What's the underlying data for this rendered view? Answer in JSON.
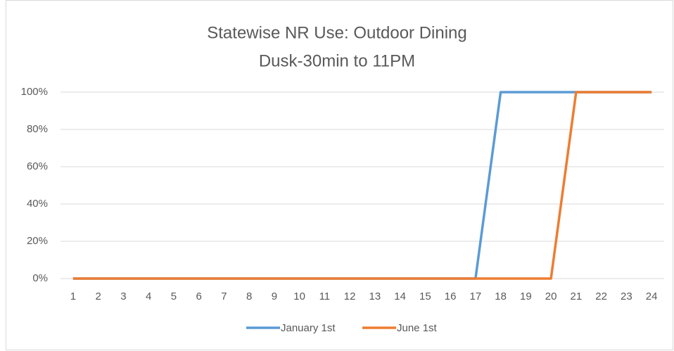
{
  "chart_data": {
    "type": "line",
    "title": "Statewise NR Use: Outdoor Dining",
    "subtitle": "Dusk-30min to 11PM",
    "categories": [
      "1",
      "2",
      "3",
      "4",
      "5",
      "6",
      "7",
      "8",
      "9",
      "10",
      "11",
      "12",
      "13",
      "14",
      "15",
      "16",
      "17",
      "18",
      "19",
      "20",
      "21",
      "22",
      "23",
      "24"
    ],
    "series": [
      {
        "name": "January 1st",
        "color": "#5b9bd5",
        "values": [
          0,
          0,
          0,
          0,
          0,
          0,
          0,
          0,
          0,
          0,
          0,
          0,
          0,
          0,
          0,
          0,
          0,
          100,
          100,
          100,
          100,
          100,
          100,
          100
        ]
      },
      {
        "name": "June 1st",
        "color": "#ed7d31",
        "values": [
          0,
          0,
          0,
          0,
          0,
          0,
          0,
          0,
          0,
          0,
          0,
          0,
          0,
          0,
          0,
          0,
          0,
          0,
          0,
          0,
          100,
          100,
          100,
          100
        ]
      }
    ],
    "ylim": [
      0,
      100
    ],
    "yticks": [
      {
        "value": 0,
        "label": "0%"
      },
      {
        "value": 20,
        "label": "20%"
      },
      {
        "value": 40,
        "label": "40%"
      },
      {
        "value": 60,
        "label": "60%"
      },
      {
        "value": 80,
        "label": "80%"
      },
      {
        "value": 100,
        "label": "100%"
      }
    ],
    "grid": true,
    "legend": "bottom"
  }
}
